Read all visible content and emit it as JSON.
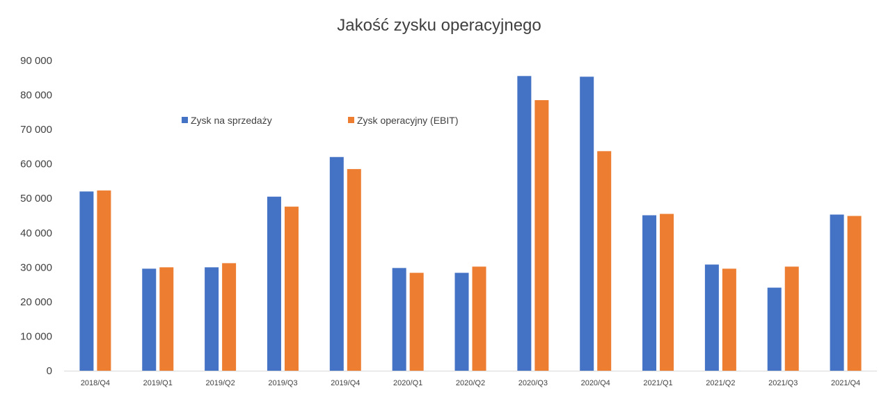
{
  "chart_data": {
    "type": "bar",
    "title": "Jakość zysku operacyjnego",
    "xlabel": "",
    "ylabel": "",
    "categories": [
      "2018/Q4",
      "2019/Q1",
      "2019/Q2",
      "2019/Q3",
      "2019/Q4",
      "2020/Q1",
      "2020/Q2",
      "2020/Q3",
      "2020/Q4",
      "2021/Q1",
      "2021/Q2",
      "2021/Q3",
      "2021/Q4"
    ],
    "series": [
      {
        "name": "Zysk na sprzedaży",
        "color": "#4472C4",
        "values": [
          52000,
          29600,
          30000,
          50500,
          62000,
          29800,
          28400,
          85500,
          85300,
          45100,
          30800,
          24100,
          45300
        ]
      },
      {
        "name": "Zysk operacyjny (EBIT)",
        "color": "#ED7D31",
        "values": [
          52300,
          30000,
          31200,
          47600,
          58500,
          28400,
          30200,
          78500,
          63700,
          45500,
          29600,
          30200,
          44900
        ]
      }
    ],
    "ylim": [
      0,
      90000
    ],
    "yticks": [
      "0",
      "10 000",
      "20 000",
      "30 000",
      "40 000",
      "50 000",
      "60 000",
      "70 000",
      "80 000",
      "90 000"
    ],
    "grid": false,
    "legend_position": "top-left"
  }
}
